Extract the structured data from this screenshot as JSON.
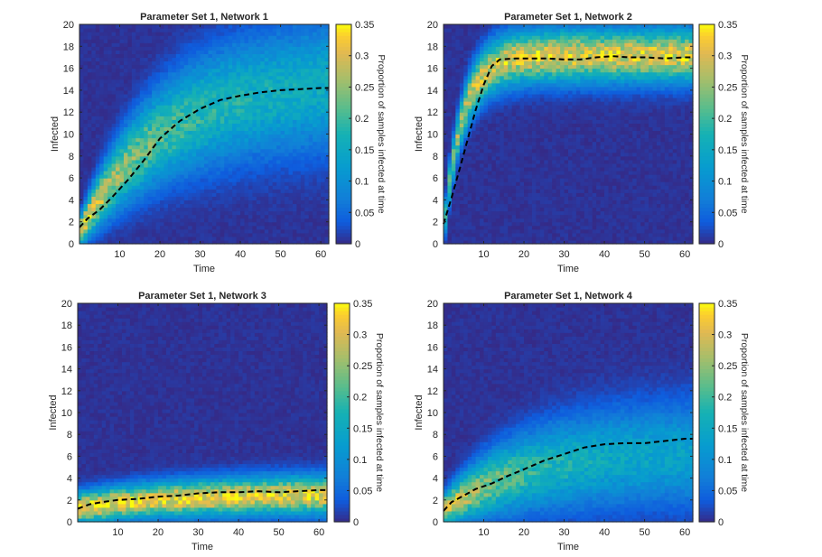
{
  "chart_data": [
    {
      "type": "heatmap",
      "title": "Parameter Set 1, Network 1",
      "xlabel": "Time",
      "ylabel": "Infected",
      "colorbar_label": "Proportion of samples infected at time",
      "xlim": [
        0,
        62
      ],
      "ylim": [
        0,
        20
      ],
      "clim": [
        0,
        0.35
      ],
      "xticks": [
        10,
        20,
        30,
        40,
        50,
        60
      ],
      "yticks": [
        0,
        2,
        4,
        6,
        8,
        10,
        12,
        14,
        16,
        18,
        20
      ],
      "cticks": [
        0,
        0.05,
        0.1,
        0.15,
        0.2,
        0.25,
        0.3,
        0.35
      ],
      "mean_line": {
        "x": [
          0,
          2,
          5,
          8,
          12,
          16,
          20,
          25,
          30,
          35,
          40,
          45,
          50,
          55,
          60,
          62
        ],
        "y": [
          1.5,
          2.3,
          3.1,
          4.2,
          5.8,
          7.6,
          9.6,
          11.2,
          12.3,
          13.1,
          13.5,
          13.8,
          14.0,
          14.1,
          14.2,
          14.2
        ]
      },
      "density": {
        "start": 1.0,
        "end_peak": 15.0,
        "rate": 0.05,
        "start_width": 0.9,
        "end_width": 4.0,
        "start_amp": 0.32,
        "end_amp": 0.14
      }
    },
    {
      "type": "heatmap",
      "title": "Parameter Set 1, Network 2",
      "xlabel": "Time",
      "ylabel": "Infected",
      "colorbar_label": "Proportion of samples infected at time",
      "xlim": [
        0,
        62
      ],
      "ylim": [
        0,
        20
      ],
      "clim": [
        0,
        0.35
      ],
      "xticks": [
        10,
        20,
        30,
        40,
        50,
        60
      ],
      "yticks": [
        0,
        2,
        4,
        6,
        8,
        10,
        12,
        14,
        16,
        18,
        20
      ],
      "cticks": [
        0,
        0.05,
        0.1,
        0.15,
        0.2,
        0.25,
        0.3,
        0.35
      ],
      "mean_line": {
        "x": [
          0,
          2,
          4,
          6,
          8,
          10,
          12,
          14,
          18,
          22,
          26,
          30,
          34,
          38,
          42,
          46,
          50,
          55,
          60,
          62
        ],
        "y": [
          1.8,
          4.2,
          6.8,
          9.5,
          12.2,
          14.5,
          16.2,
          16.8,
          16.9,
          16.9,
          16.9,
          16.8,
          16.8,
          17.0,
          17.1,
          17.0,
          17.0,
          16.9,
          17.0,
          17.0
        ]
      },
      "density": {
        "start": 1.0,
        "end_peak": 17.2,
        "rate": 0.22,
        "start_width": 1.0,
        "end_width": 1.6,
        "start_amp": 0.18,
        "end_amp": 0.3
      }
    },
    {
      "type": "heatmap",
      "title": "Parameter Set 1, Network 3",
      "xlabel": "Time",
      "ylabel": "Infected",
      "colorbar_label": "Proportion of samples infected at time",
      "xlim": [
        0,
        62
      ],
      "ylim": [
        0,
        20
      ],
      "clim": [
        0,
        0.35
      ],
      "xticks": [
        10,
        20,
        30,
        40,
        50,
        60
      ],
      "yticks": [
        0,
        2,
        4,
        6,
        8,
        10,
        12,
        14,
        16,
        18,
        20
      ],
      "cticks": [
        0,
        0.05,
        0.1,
        0.15,
        0.2,
        0.25,
        0.3,
        0.35
      ],
      "mean_line": {
        "x": [
          0,
          3,
          6,
          10,
          15,
          20,
          25,
          30,
          35,
          40,
          45,
          50,
          55,
          60,
          62
        ],
        "y": [
          1.2,
          1.6,
          1.8,
          2.0,
          2.1,
          2.3,
          2.4,
          2.6,
          2.7,
          2.7,
          2.8,
          2.7,
          2.8,
          2.9,
          2.9
        ]
      },
      "density": {
        "start": 1.3,
        "end_peak": 2.6,
        "rate": 0.04,
        "start_width": 0.9,
        "end_width": 1.2,
        "start_amp": 0.33,
        "end_amp": 0.3
      }
    },
    {
      "type": "heatmap",
      "title": "Parameter Set 1, Network 4",
      "xlabel": "Time",
      "ylabel": "Infected",
      "colorbar_label": "Proportion of samples infected at time",
      "xlim": [
        0,
        62
      ],
      "ylim": [
        0,
        20
      ],
      "clim": [
        0,
        0.35
      ],
      "xticks": [
        10,
        20,
        30,
        40,
        50,
        60
      ],
      "yticks": [
        0,
        2,
        4,
        6,
        8,
        10,
        12,
        14,
        16,
        18,
        20
      ],
      "cticks": [
        0,
        0.05,
        0.1,
        0.15,
        0.2,
        0.25,
        0.3,
        0.35
      ],
      "mean_line": {
        "x": [
          0,
          2,
          5,
          8,
          12,
          16,
          20,
          25,
          30,
          35,
          40,
          45,
          50,
          55,
          60,
          62
        ],
        "y": [
          1.0,
          1.8,
          2.4,
          3.0,
          3.5,
          4.2,
          4.8,
          5.6,
          6.2,
          6.8,
          7.1,
          7.2,
          7.2,
          7.4,
          7.6,
          7.6
        ]
      },
      "density": {
        "start": 1.1,
        "end_peak": 6.5,
        "rate": 0.05,
        "start_width": 0.9,
        "end_width": 3.2,
        "start_amp": 0.32,
        "end_amp": 0.12
      }
    }
  ]
}
